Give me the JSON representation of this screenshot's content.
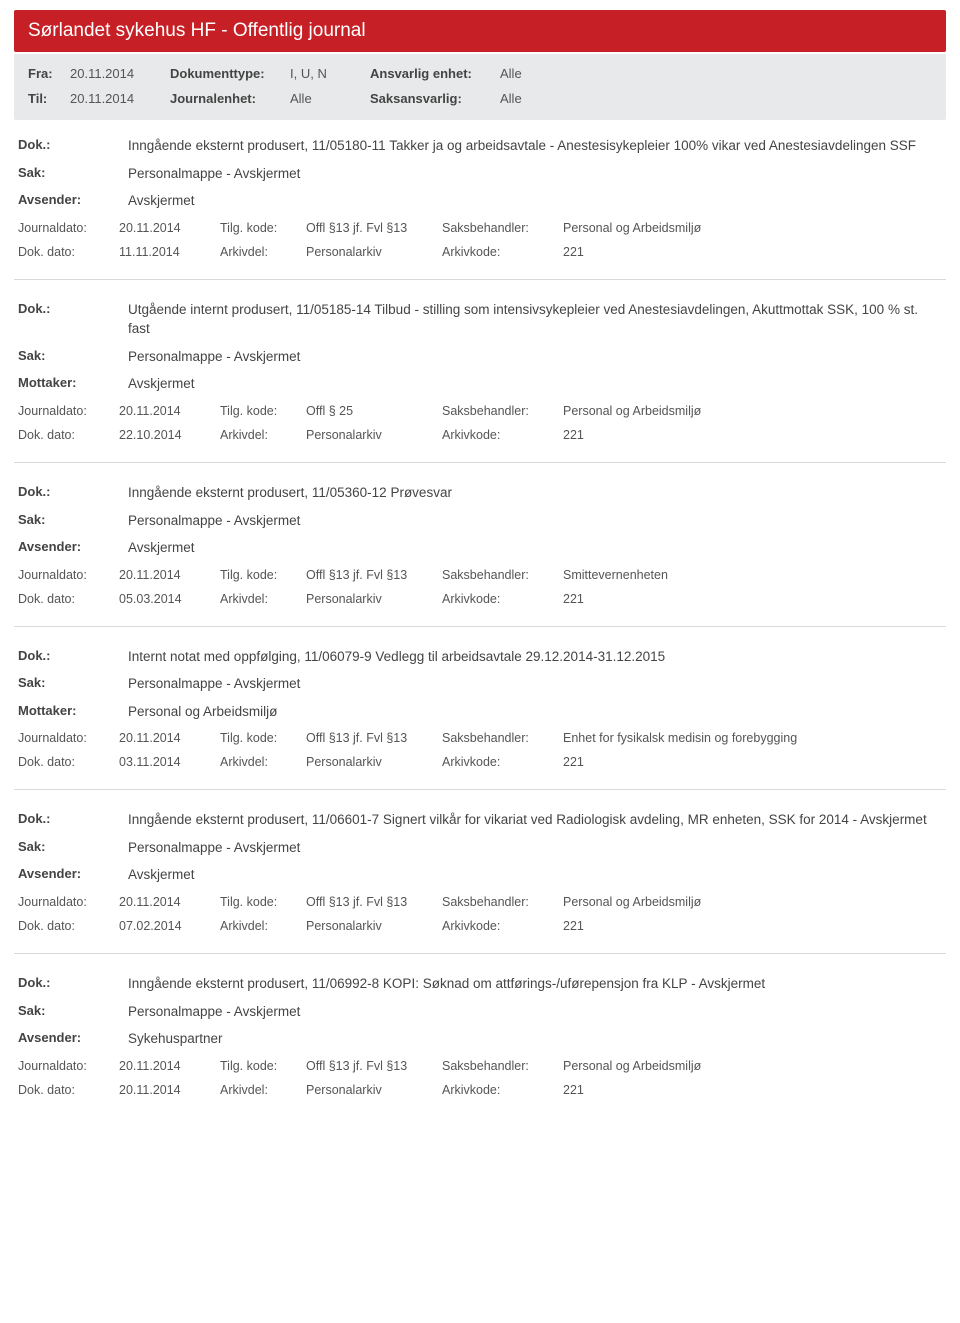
{
  "header": {
    "title": "Sørlandet sykehus HF - Offentlig journal"
  },
  "meta": {
    "fra_label": "Fra:",
    "fra_val": "20.11.2014",
    "til_label": "Til:",
    "til_val": "20.11.2014",
    "doktype_label": "Dokumenttype:",
    "doktype_val": "I, U, N",
    "journalenhet_label": "Journalenhet:",
    "journalenhet_val": "Alle",
    "ansvarlig_label": "Ansvarlig enhet:",
    "ansvarlig_val": "Alle",
    "saksansvarlig_label": "Saksansvarlig:",
    "saksansvarlig_val": "Alle"
  },
  "labels": {
    "dok": "Dok.:",
    "sak": "Sak:",
    "avsender": "Avsender:",
    "mottaker": "Mottaker:",
    "journaldato": "Journaldato:",
    "dokdato": "Dok. dato:",
    "tilgkode": "Tilg. kode:",
    "arkivdel": "Arkivdel:",
    "saksbehandler": "Saksbehandler:",
    "arkivkode": "Arkivkode:"
  },
  "entries": [
    {
      "dok": "Inngående eksternt produsert, 11/05180-11 Takker ja og arbeidsavtale - Anestesisykepleier 100% vikar ved Anestesiavdelingen SSF",
      "sak": "Personalmappe - Avskjermet",
      "party_label": "Avsender:",
      "party_val": "Avskjermet",
      "journaldato": "20.11.2014",
      "tilgkode": "Offl §13 jf. Fvl §13",
      "saksbehandler": "Personal og Arbeidsmiljø",
      "dokdato": "11.11.2014",
      "arkivdel": "Personalarkiv",
      "arkivkode": "221"
    },
    {
      "dok": "Utgående internt produsert, 11/05185-14 Tilbud - stilling som intensivsykepleier ved Anestesiavdelingen, Akuttmottak SSK, 100 % st. fast",
      "sak": "Personalmappe - Avskjermet",
      "party_label": "Mottaker:",
      "party_val": "Avskjermet",
      "journaldato": "20.11.2014",
      "tilgkode": "Offl § 25",
      "saksbehandler": "Personal og Arbeidsmiljø",
      "dokdato": "22.10.2014",
      "arkivdel": "Personalarkiv",
      "arkivkode": "221"
    },
    {
      "dok": "Inngående eksternt produsert, 11/05360-12 Prøvesvar",
      "sak": "Personalmappe - Avskjermet",
      "party_label": "Avsender:",
      "party_val": "Avskjermet",
      "journaldato": "20.11.2014",
      "tilgkode": "Offl §13 jf. Fvl §13",
      "saksbehandler": "Smittevernenheten",
      "dokdato": "05.03.2014",
      "arkivdel": "Personalarkiv",
      "arkivkode": "221"
    },
    {
      "dok": "Internt notat med oppfølging, 11/06079-9 Vedlegg til arbeidsavtale 29.12.2014-31.12.2015",
      "sak": "Personalmappe - Avskjermet",
      "party_label": "Mottaker:",
      "party_val": "Personal og Arbeidsmiljø",
      "journaldato": "20.11.2014",
      "tilgkode": "Offl §13 jf. Fvl §13",
      "saksbehandler": "Enhet for fysikalsk medisin og forebygging",
      "dokdato": "03.11.2014",
      "arkivdel": "Personalarkiv",
      "arkivkode": "221"
    },
    {
      "dok": "Inngående eksternt produsert, 11/06601-7 Signert vilkår for vikariat ved Radiologisk avdeling, MR enheten, SSK  for 2014 - Avskjermet",
      "sak": "Personalmappe - Avskjermet",
      "party_label": "Avsender:",
      "party_val": "Avskjermet",
      "journaldato": "20.11.2014",
      "tilgkode": "Offl §13 jf. Fvl §13",
      "saksbehandler": "Personal og Arbeidsmiljø",
      "dokdato": "07.02.2014",
      "arkivdel": "Personalarkiv",
      "arkivkode": "221"
    },
    {
      "dok": "Inngående eksternt produsert, 11/06992-8 KOPI: Søknad om attførings-/uførepensjon fra KLP - Avskjermet",
      "sak": "Personalmappe - Avskjermet",
      "party_label": "Avsender:",
      "party_val": "Sykehuspartner",
      "journaldato": "20.11.2014",
      "tilgkode": "Offl §13 jf. Fvl §13",
      "saksbehandler": "Personal og Arbeidsmiljø",
      "dokdato": "20.11.2014",
      "arkivdel": "Personalarkiv",
      "arkivkode": "221"
    }
  ]
}
